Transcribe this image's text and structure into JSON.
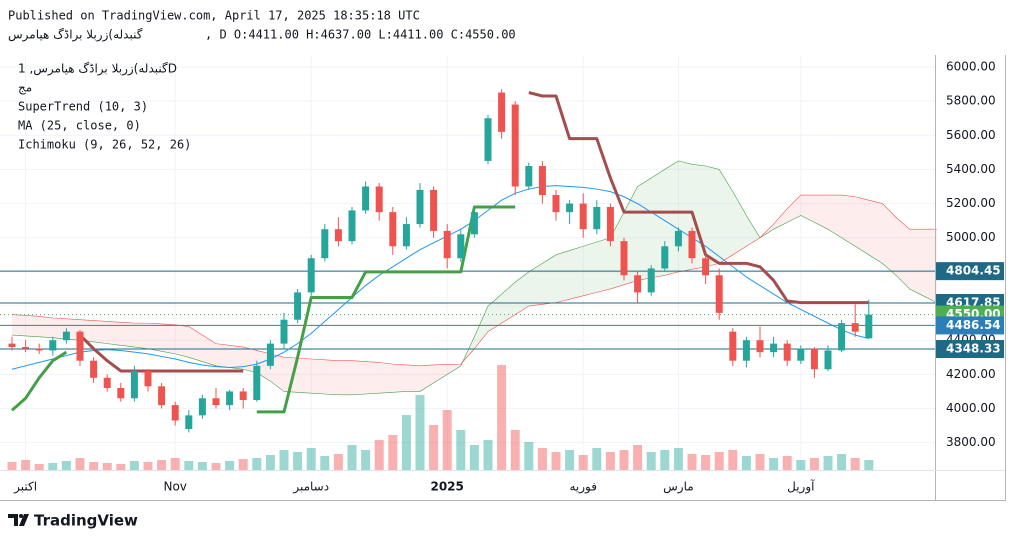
{
  "header": {
    "published": "Published on TradingView.com, April 17, 2025 18:35:18 UTC",
    "symbol": "گنبدله)زربلا براڈگ هیامرس",
    "ohlc": ", D O:4411.00 H:4637.00 L:4411.00 C:4550.00"
  },
  "legend": {
    "symbol": "گنبدله)زربلا براڈگ هیامرس, 1D",
    "exchange": "مج"
  },
  "footer": {
    "brand": "TradingView"
  },
  "chart_data": {
    "type": "candlestick",
    "categories": [
      null,
      "اکتبر",
      null,
      null,
      null,
      null,
      null,
      null,
      null,
      null,
      null,
      null,
      "Nov",
      null,
      null,
      null,
      null,
      null,
      null,
      null,
      null,
      null,
      "دسامبر",
      null,
      null,
      null,
      null,
      null,
      null,
      null,
      null,
      null,
      "2025",
      null,
      null,
      null,
      null,
      null,
      null,
      null,
      null,
      null,
      "فوریه",
      null,
      null,
      null,
      null,
      null,
      null,
      "مارس",
      null,
      null,
      null,
      null,
      null,
      null,
      null,
      null,
      "آوریل",
      null,
      null,
      null,
      null,
      null
    ],
    "open": [
      4380,
      4360,
      4350,
      4340,
      4400,
      4450,
      4280,
      4180,
      4120,
      4060,
      4220,
      4130,
      4020,
      3880,
      3960,
      4060,
      4020,
      4100,
      4050,
      4250,
      4380,
      4520,
      4680,
      4880,
      5050,
      4980,
      5160,
      5300,
      5150,
      4950,
      5080,
      5280,
      5040,
      4880,
      5020,
      5450,
      5850,
      5780,
      5300,
      5420,
      5250,
      5150,
      5200,
      5050,
      5180,
      4980,
      4780,
      4680,
      4820,
      4950,
      5040,
      4880,
      4780,
      4450,
      4280,
      4400,
      4330,
      4380,
      4280,
      4350,
      4230,
      4340,
      4500,
      4411
    ],
    "high": [
      4420,
      4400,
      4380,
      4420,
      4470,
      4460,
      4300,
      4200,
      4150,
      4250,
      4230,
      4150,
      4040,
      3990,
      4080,
      4120,
      4110,
      4120,
      4280,
      4400,
      4560,
      4700,
      4900,
      5080,
      5120,
      5180,
      5330,
      5320,
      5180,
      5120,
      5320,
      5300,
      5080,
      5050,
      5170,
      5720,
      5870,
      5800,
      5440,
      5450,
      5280,
      5220,
      5260,
      5220,
      5200,
      5000,
      4800,
      4840,
      4980,
      5060,
      5060,
      4900,
      4820,
      4470,
      4420,
      4480,
      4420,
      4400,
      4370,
      4360,
      4370,
      4520,
      4610,
      4637
    ],
    "low": [
      4340,
      4330,
      4320,
      4310,
      4380,
      4250,
      4150,
      4100,
      4040,
      4040,
      4100,
      4000,
      3900,
      3860,
      3940,
      4000,
      3990,
      4000,
      4040,
      4230,
      4350,
      4500,
      4660,
      4860,
      4950,
      4960,
      5140,
      5100,
      4900,
      4930,
      5060,
      5000,
      4820,
      4860,
      5000,
      5430,
      5580,
      5250,
      5280,
      5200,
      5100,
      5080,
      5000,
      5020,
      4950,
      4750,
      4620,
      4660,
      4800,
      4920,
      4850,
      4730,
      4520,
      4250,
      4240,
      4300,
      4300,
      4250,
      4260,
      4180,
      4220,
      4330,
      4420,
      4411
    ],
    "close": [
      4360,
      4350,
      4340,
      4400,
      4450,
      4280,
      4180,
      4120,
      4060,
      4220,
      4130,
      4020,
      3930,
      3960,
      4060,
      4020,
      4100,
      4050,
      4250,
      4380,
      4520,
      4680,
      4880,
      5050,
      4980,
      5160,
      5300,
      5150,
      4950,
      5080,
      5280,
      5040,
      4880,
      5020,
      5150,
      5700,
      5620,
      5300,
      5420,
      5250,
      5150,
      5200,
      5050,
      5180,
      4980,
      4780,
      4680,
      4820,
      4950,
      5040,
      4880,
      4780,
      4560,
      4280,
      4400,
      4330,
      4380,
      4280,
      4350,
      4230,
      4340,
      4500,
      4450,
      4550
    ],
    "volume": [
      8,
      10,
      6,
      7,
      9,
      12,
      8,
      7,
      6,
      9,
      8,
      10,
      12,
      9,
      8,
      7,
      9,
      11,
      12,
      15,
      20,
      18,
      22,
      14,
      16,
      25,
      20,
      30,
      35,
      55,
      75,
      45,
      60,
      40,
      25,
      30,
      105,
      40,
      28,
      22,
      18,
      20,
      15,
      22,
      18,
      20,
      25,
      18,
      20,
      22,
      16,
      15,
      18,
      20,
      14,
      16,
      12,
      14,
      10,
      12,
      14,
      16,
      12,
      10
    ],
    "up_color": "#26a69a",
    "down_color": "#ef5350",
    "ylim": [
      3640,
      6070
    ],
    "yticks": [
      {
        "value": 3800,
        "label": "3800.00"
      },
      {
        "value": 4000,
        "label": "4000.00"
      },
      {
        "value": 4200,
        "label": "4200.00"
      },
      {
        "value": 4400,
        "label": "4400.00"
      },
      {
        "value": 4600,
        "label": "4600.00"
      },
      {
        "value": 4800,
        "label": "4800.00"
      },
      {
        "value": 5000,
        "label": "5000.00"
      },
      {
        "value": 5200,
        "label": "5200.00"
      },
      {
        "value": 5400,
        "label": "5400.00"
      },
      {
        "value": 5600,
        "label": "5600.00"
      },
      {
        "value": 5800,
        "label": "5800.00"
      },
      {
        "value": 6000,
        "label": "6000.00"
      }
    ],
    "supertrend": {
      "label": "SuperTrend (10, 3)",
      "up_color": "#43a047",
      "down_color": "#a34d4d",
      "up": [
        3990,
        4060,
        4180,
        4280,
        4330,
        null,
        null,
        null,
        null,
        null,
        null,
        null,
        null,
        null,
        null,
        null,
        null,
        null,
        3980,
        3980,
        3980,
        4300,
        4650,
        4650,
        4650,
        4650,
        4800,
        4800,
        4800,
        4800,
        4800,
        4800,
        4800,
        4800,
        5180,
        5180,
        5180,
        5180,
        null,
        null,
        null,
        null,
        null,
        null,
        null,
        null,
        null,
        null,
        null,
        null,
        null,
        null,
        null,
        null,
        null,
        null,
        null,
        null,
        null,
        null,
        null,
        null,
        null,
        null
      ],
      "down": [
        null,
        null,
        null,
        null,
        null,
        4430,
        4350,
        4280,
        4220,
        4220,
        4220,
        4220,
        4220,
        4220,
        4220,
        4220,
        4220,
        4220,
        null,
        null,
        null,
        null,
        null,
        null,
        null,
        null,
        null,
        null,
        null,
        null,
        null,
        null,
        null,
        null,
        null,
        null,
        null,
        null,
        5850,
        5830,
        5830,
        5580,
        5580,
        5580,
        5350,
        5150,
        5150,
        5150,
        5150,
        5150,
        5150,
        4900,
        4850,
        4850,
        4850,
        4830,
        4750,
        4630,
        4620,
        4620,
        4620,
        4620,
        4620,
        4620
      ]
    },
    "ma": {
      "label": "MA (25, close, 0)",
      "color": "#2196f3",
      "values": [
        4230,
        4250,
        4270,
        4290,
        4310,
        4330,
        4340,
        4345,
        4340,
        4330,
        4320,
        4305,
        4290,
        4270,
        4255,
        4245,
        4240,
        4245,
        4260,
        4290,
        4330,
        4380,
        4440,
        4510,
        4580,
        4650,
        4720,
        4780,
        4830,
        4880,
        4930,
        4970,
        5010,
        5050,
        5100,
        5160,
        5220,
        5260,
        5285,
        5300,
        5305,
        5300,
        5295,
        5285,
        5270,
        5240,
        5200,
        5150,
        5100,
        5050,
        5000,
        4950,
        4890,
        4830,
        4770,
        4720,
        4670,
        4620,
        4580,
        4540,
        4500,
        4460,
        4430,
        4410
      ]
    },
    "ichimoku": {
      "label": "Ichimoku (9, 26, 52, 26)",
      "up_color": "#43a047",
      "down_color": "#ef5350",
      "span_a": [
        4430,
        4425,
        4420,
        4415,
        4405,
        4400,
        4390,
        4380,
        4370,
        4360,
        4350,
        4335,
        4320,
        4300,
        4275,
        4250,
        4240,
        4230,
        4210,
        4160,
        4100,
        4095,
        4090,
        4085,
        4080,
        4080,
        4085,
        4090,
        4095,
        4100,
        4100,
        4150,
        4200,
        4250,
        4420,
        4600,
        4670,
        4740,
        4800,
        4850,
        4900,
        4925,
        4950,
        4975,
        5000,
        5150,
        5300,
        5350,
        5400,
        5450,
        5430,
        5420,
        5400,
        5270,
        5130,
        5000,
        5050,
        5090,
        5130,
        5090,
        5050,
        5000,
        4950,
        4900,
        4850,
        4780,
        4700,
        4660,
        4620
      ],
      "span_b": [
        4550,
        4545,
        4540,
        4530,
        4525,
        4520,
        4515,
        4510,
        4505,
        4500,
        4500,
        4495,
        4490,
        4480,
        4430,
        4380,
        4370,
        4360,
        4340,
        4320,
        4300,
        4295,
        4290,
        4285,
        4280,
        4280,
        4275,
        4270,
        4260,
        4255,
        4250,
        4255,
        4258,
        4260,
        4350,
        4450,
        4500,
        4550,
        4600,
        4610,
        4620,
        4640,
        4660,
        4680,
        4700,
        4725,
        4750,
        4765,
        4780,
        4800,
        4815,
        4830,
        4850,
        4900,
        4950,
        5000,
        5080,
        5170,
        5250,
        5250,
        5250,
        5250,
        5240,
        5220,
        5200,
        5120,
        5050,
        5050,
        5050
      ]
    },
    "price_lines": [
      {
        "value": 4804.45,
        "label": "4804.45",
        "color": "#1e6a86"
      },
      {
        "value": 4617.85,
        "label": "4617.85",
        "color": "#1e6a86"
      },
      {
        "value": 4550,
        "label": "4550.00",
        "color": "#4caf50",
        "dotted": true
      },
      {
        "value": 4486.54,
        "label": "4486.54",
        "color": "#2a7fb8"
      },
      {
        "value": 4348.33,
        "label": "4348.33",
        "color": "#1e6a86"
      }
    ]
  }
}
